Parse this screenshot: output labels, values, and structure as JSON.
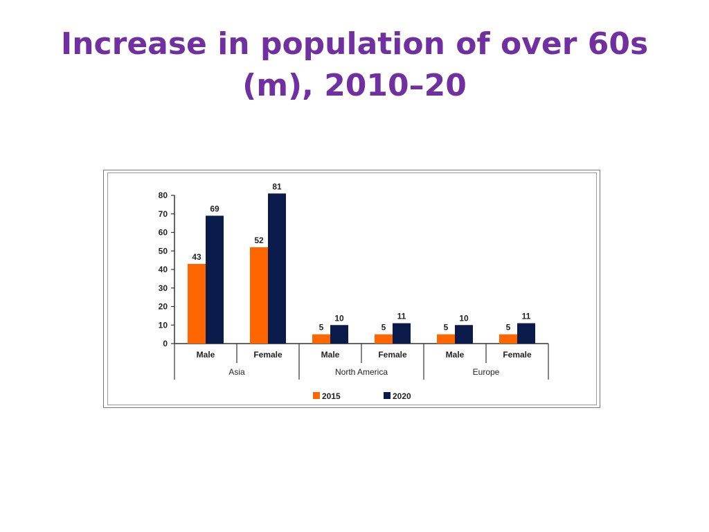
{
  "slide": {
    "title_line1": "Increase in population of over 60s",
    "title_line2": "(m), 2010–20"
  },
  "colors": {
    "title": "#7030a0",
    "series_2015": "#ff6600",
    "series_2020": "#0a1a4a"
  },
  "chart_data": {
    "type": "bar",
    "title": "",
    "xlabel": "",
    "ylabel": "",
    "ylim": [
      0,
      80
    ],
    "yticks": [
      0,
      10,
      20,
      30,
      40,
      50,
      60,
      70,
      80
    ],
    "groups": [
      "Asia",
      "North America",
      "Europe"
    ],
    "categories": [
      "Male",
      "Female",
      "Male",
      "Female",
      "Male",
      "Female"
    ],
    "category_group": [
      0,
      0,
      1,
      1,
      2,
      2
    ],
    "series": [
      {
        "name": "2015",
        "color": "#ff6600",
        "values": [
          43,
          52,
          5,
          5,
          5,
          5
        ]
      },
      {
        "name": "2020",
        "color": "#0a1a4a",
        "values": [
          69,
          81,
          10,
          11,
          10,
          11
        ]
      }
    ],
    "legend": "bottom",
    "grid": false
  }
}
